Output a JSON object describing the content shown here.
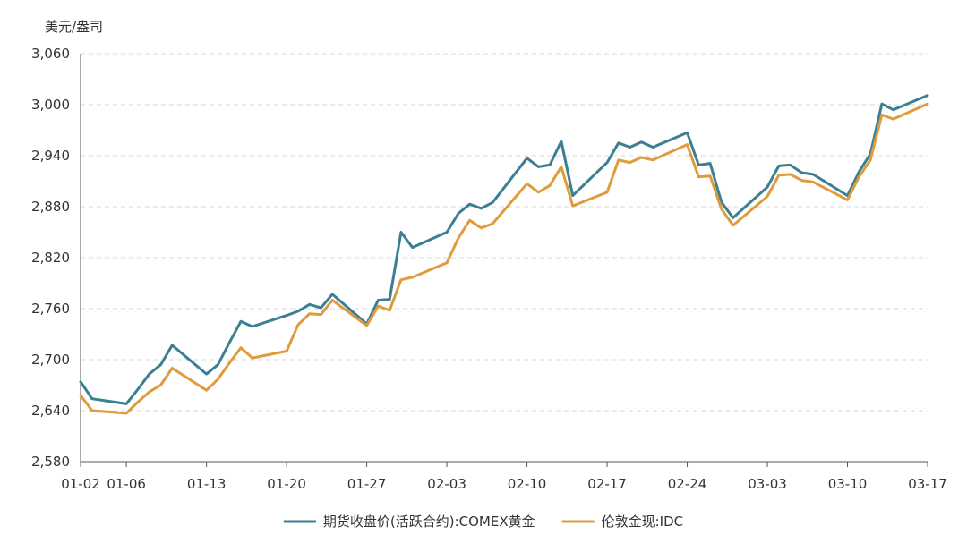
{
  "chart_data": {
    "type": "line",
    "ylabel": "美元/盎司",
    "ylim": [
      2580,
      3060
    ],
    "yticks": [
      2580,
      2640,
      2700,
      2760,
      2820,
      2880,
      2940,
      3000,
      3060
    ],
    "ytick_labels": [
      "2,580",
      "2,640",
      "2,700",
      "2,760",
      "2,820",
      "2,880",
      "2,940",
      "3,000",
      "3,060"
    ],
    "xlim": [
      "2025-01-02",
      "2025-03-17"
    ],
    "xticks": [
      "2025-01-02",
      "2025-01-06",
      "2025-01-13",
      "2025-01-20",
      "2025-01-27",
      "2025-02-03",
      "2025-02-10",
      "2025-02-17",
      "2025-02-24",
      "2025-03-03",
      "2025-03-10",
      "2025-03-17"
    ],
    "xtick_labels": [
      "01-02",
      "01-06",
      "01-13",
      "01-20",
      "01-27",
      "02-03",
      "02-10",
      "02-17",
      "02-24",
      "03-03",
      "03-10",
      "03-17"
    ],
    "grid": true,
    "legend_position": "bottom",
    "series": [
      {
        "name": "期货收盘价(活跃合约):COMEX黄金",
        "color": "#3c7e94",
        "points": [
          [
            "2025-01-02",
            2674
          ],
          [
            "2025-01-03",
            2654
          ],
          [
            "2025-01-06",
            2648
          ],
          [
            "2025-01-07",
            2665
          ],
          [
            "2025-01-08",
            2683
          ],
          [
            "2025-01-09",
            2694
          ],
          [
            "2025-01-10",
            2717
          ],
          [
            "2025-01-13",
            2683
          ],
          [
            "2025-01-14",
            2694
          ],
          [
            "2025-01-15",
            2720
          ],
          [
            "2025-01-16",
            2745
          ],
          [
            "2025-01-17",
            2739
          ],
          [
            "2025-01-20",
            2752
          ],
          [
            "2025-01-21",
            2757
          ],
          [
            "2025-01-22",
            2765
          ],
          [
            "2025-01-23",
            2761
          ],
          [
            "2025-01-24",
            2777
          ],
          [
            "2025-01-27",
            2742
          ],
          [
            "2025-01-28",
            2770
          ],
          [
            "2025-01-29",
            2771
          ],
          [
            "2025-01-30",
            2850
          ],
          [
            "2025-01-31",
            2832
          ],
          [
            "2025-02-03",
            2850
          ],
          [
            "2025-02-04",
            2872
          ],
          [
            "2025-02-05",
            2883
          ],
          [
            "2025-02-06",
            2878
          ],
          [
            "2025-02-07",
            2885
          ],
          [
            "2025-02-10",
            2937
          ],
          [
            "2025-02-11",
            2927
          ],
          [
            "2025-02-12",
            2929
          ],
          [
            "2025-02-13",
            2957
          ],
          [
            "2025-02-14",
            2893
          ],
          [
            "2025-02-17",
            2932
          ],
          [
            "2025-02-18",
            2955
          ],
          [
            "2025-02-19",
            2950
          ],
          [
            "2025-02-20",
            2956
          ],
          [
            "2025-02-21",
            2950
          ],
          [
            "2025-02-24",
            2967
          ],
          [
            "2025-02-25",
            2929
          ],
          [
            "2025-02-26",
            2931
          ],
          [
            "2025-02-27",
            2885
          ],
          [
            "2025-02-28",
            2867
          ],
          [
            "2025-03-03",
            2903
          ],
          [
            "2025-03-04",
            2928
          ],
          [
            "2025-03-05",
            2929
          ],
          [
            "2025-03-06",
            2920
          ],
          [
            "2025-03-07",
            2918
          ],
          [
            "2025-03-10",
            2893
          ],
          [
            "2025-03-11",
            2921
          ],
          [
            "2025-03-12",
            2942
          ],
          [
            "2025-03-13",
            3001
          ],
          [
            "2025-03-14",
            2994
          ],
          [
            "2025-03-17",
            3011
          ]
        ]
      },
      {
        "name": "伦敦金现:IDC",
        "color": "#e09b3d",
        "points": [
          [
            "2025-01-02",
            2658
          ],
          [
            "2025-01-03",
            2640
          ],
          [
            "2025-01-06",
            2637
          ],
          [
            "2025-01-07",
            2650
          ],
          [
            "2025-01-08",
            2662
          ],
          [
            "2025-01-09",
            2670
          ],
          [
            "2025-01-10",
            2690
          ],
          [
            "2025-01-13",
            2664
          ],
          [
            "2025-01-14",
            2677
          ],
          [
            "2025-01-15",
            2696
          ],
          [
            "2025-01-16",
            2714
          ],
          [
            "2025-01-17",
            2702
          ],
          [
            "2025-01-20",
            2710
          ],
          [
            "2025-01-21",
            2741
          ],
          [
            "2025-01-22",
            2754
          ],
          [
            "2025-01-23",
            2753
          ],
          [
            "2025-01-24",
            2770
          ],
          [
            "2025-01-27",
            2740
          ],
          [
            "2025-01-28",
            2763
          ],
          [
            "2025-01-29",
            2758
          ],
          [
            "2025-01-30",
            2794
          ],
          [
            "2025-01-31",
            2797
          ],
          [
            "2025-02-03",
            2814
          ],
          [
            "2025-02-04",
            2843
          ],
          [
            "2025-02-05",
            2864
          ],
          [
            "2025-02-06",
            2855
          ],
          [
            "2025-02-07",
            2860
          ],
          [
            "2025-02-10",
            2907
          ],
          [
            "2025-02-11",
            2897
          ],
          [
            "2025-02-12",
            2905
          ],
          [
            "2025-02-13",
            2927
          ],
          [
            "2025-02-14",
            2881
          ],
          [
            "2025-02-17",
            2897
          ],
          [
            "2025-02-18",
            2935
          ],
          [
            "2025-02-19",
            2932
          ],
          [
            "2025-02-20",
            2938
          ],
          [
            "2025-02-21",
            2935
          ],
          [
            "2025-02-24",
            2953
          ],
          [
            "2025-02-25",
            2915
          ],
          [
            "2025-02-26",
            2916
          ],
          [
            "2025-02-27",
            2877
          ],
          [
            "2025-02-28",
            2858
          ],
          [
            "2025-03-03",
            2892
          ],
          [
            "2025-03-04",
            2917
          ],
          [
            "2025-03-05",
            2918
          ],
          [
            "2025-03-06",
            2911
          ],
          [
            "2025-03-07",
            2909
          ],
          [
            "2025-03-10",
            2888
          ],
          [
            "2025-03-11",
            2915
          ],
          [
            "2025-03-12",
            2935
          ],
          [
            "2025-03-13",
            2988
          ],
          [
            "2025-03-14",
            2983
          ],
          [
            "2025-03-17",
            3001
          ]
        ]
      }
    ]
  }
}
